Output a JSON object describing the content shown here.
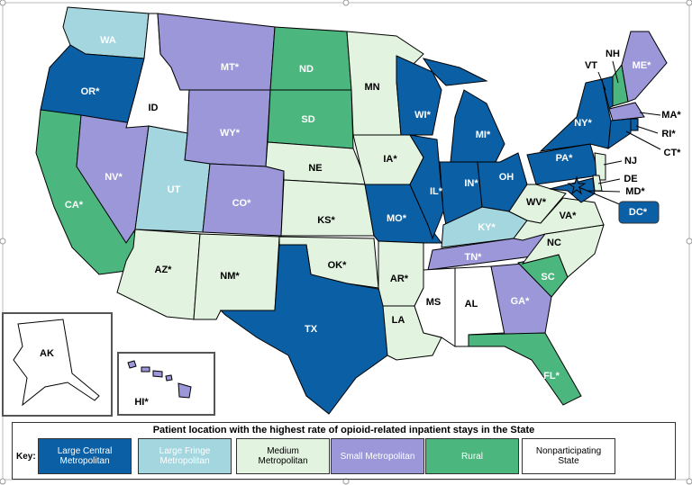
{
  "map": {
    "states": [
      {
        "label": "WA",
        "group": 1
      },
      {
        "label": "OR*",
        "group": 0
      },
      {
        "label": "CA*",
        "group": 4
      },
      {
        "label": "NV*",
        "group": 3
      },
      {
        "label": "ID",
        "group": 5
      },
      {
        "label": "MT*",
        "group": 3
      },
      {
        "label": "WY*",
        "group": 3
      },
      {
        "label": "UT",
        "group": 1
      },
      {
        "label": "CO*",
        "group": 3
      },
      {
        "label": "AZ*",
        "group": 2
      },
      {
        "label": "NM*",
        "group": 2
      },
      {
        "label": "ND",
        "group": 4
      },
      {
        "label": "SD",
        "group": 4
      },
      {
        "label": "NE",
        "group": 2
      },
      {
        "label": "KS*",
        "group": 2
      },
      {
        "label": "OK*",
        "group": 2
      },
      {
        "label": "TX",
        "group": 0
      },
      {
        "label": "MN",
        "group": 2
      },
      {
        "label": "IA*",
        "group": 2
      },
      {
        "label": "MO*",
        "group": 0
      },
      {
        "label": "AR*",
        "group": 2
      },
      {
        "label": "LA",
        "group": 2
      },
      {
        "label": "WI*",
        "group": 0
      },
      {
        "label": "IL*",
        "group": 0
      },
      {
        "label": "MI*",
        "group": 0
      },
      {
        "label": "IN*",
        "group": 0
      },
      {
        "label": "OH",
        "group": 0
      },
      {
        "label": "KY*",
        "group": 1
      },
      {
        "label": "TN*",
        "group": 3
      },
      {
        "label": "MS",
        "group": 5
      },
      {
        "label": "AL",
        "group": 5
      },
      {
        "label": "GA*",
        "group": 3
      },
      {
        "label": "FL*",
        "group": 4
      },
      {
        "label": "SC",
        "group": 4
      },
      {
        "label": "NC",
        "group": 2
      },
      {
        "label": "VA*",
        "group": 2
      },
      {
        "label": "WV*",
        "group": 2
      },
      {
        "label": "PA*",
        "group": 0
      },
      {
        "label": "NY*",
        "group": 0
      },
      {
        "label": "VT",
        "group": 0
      },
      {
        "label": "NH",
        "group": 4
      },
      {
        "label": "ME*",
        "group": 3
      },
      {
        "label": "MA*",
        "group": 3
      },
      {
        "label": "RI*",
        "group": 0
      },
      {
        "label": "CT*",
        "group": 0
      },
      {
        "label": "NJ",
        "group": 2
      },
      {
        "label": "DE",
        "group": 2
      },
      {
        "label": "MD*",
        "group": 0
      },
      {
        "label": "DC*",
        "group": 0
      },
      {
        "label": "AK",
        "group": 5
      },
      {
        "label": "HI*",
        "group": 3
      }
    ]
  },
  "legend": {
    "title": "Patient location with the highest rate of opioid-related inpatient stays in the State",
    "key_label": "Key:",
    "groups": [
      {
        "label": "Large Central Metropolitan",
        "color": "#0b5fa5",
        "text_color": "#ffffff"
      },
      {
        "label": "Large Fringe Metropolitan",
        "color": "#a3d6df",
        "text_color": "#ffffff"
      },
      {
        "label": "Medium Metropolitan",
        "color": "#e2f3df",
        "text_color": "#000000"
      },
      {
        "label": "Small Metropolitan",
        "color": "#9b97d9",
        "text_color": "#ffffff"
      },
      {
        "label": "Rural",
        "color": "#4bb67d",
        "text_color": "#ffffff"
      },
      {
        "label": "Nonparticipating State",
        "color": "#ffffff",
        "text_color": "#000000"
      }
    ]
  }
}
